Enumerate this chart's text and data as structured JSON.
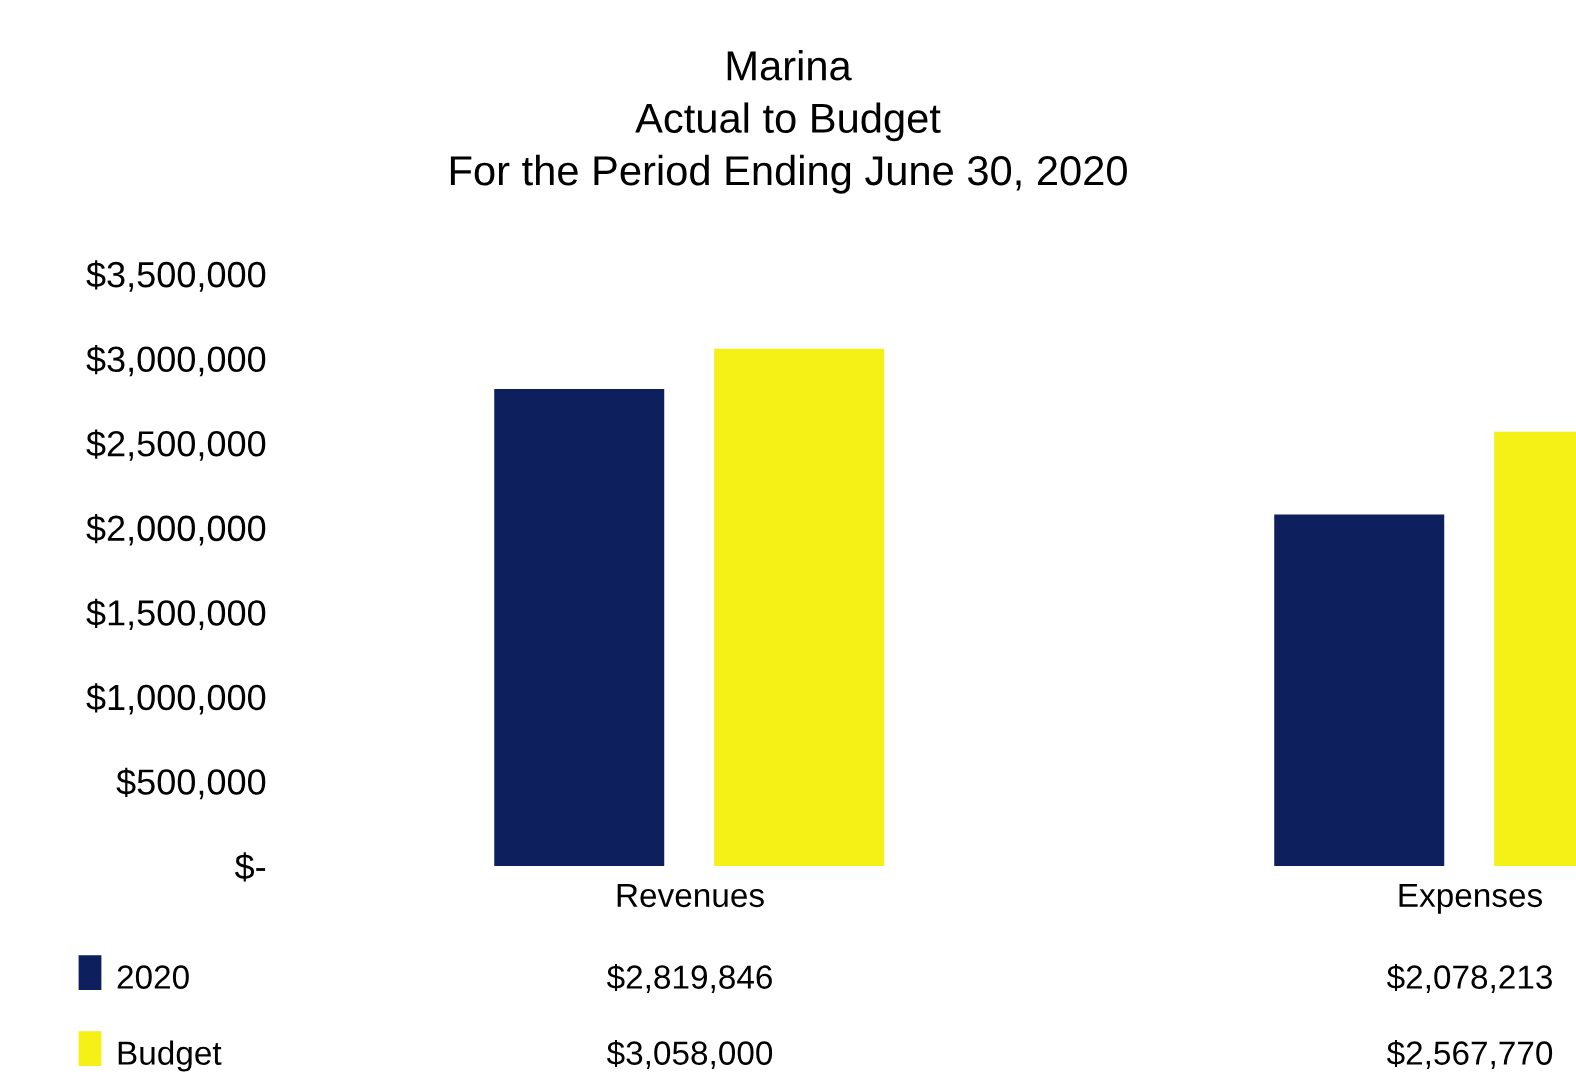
{
  "chart_data": {
    "type": "bar",
    "title": "Marina\nActual to Budget\nFor the Period Ending June 30, 2020",
    "categories": [
      "Revenues",
      "Expenses"
    ],
    "series": [
      {
        "name": "2020",
        "color": "#0d1f5c",
        "values": [
          2819846,
          2078213
        ],
        "value_labels": [
          "$2,819,846",
          "$2,078,213"
        ]
      },
      {
        "name": "Budget",
        "color": "#f5f016",
        "values": [
          3058000,
          2567770
        ],
        "value_labels": [
          "$3,058,000",
          "$2,567,770"
        ]
      }
    ],
    "ylim": [
      0,
      3500000
    ],
    "yticks": [
      {
        "value": 0,
        "label": "$-"
      },
      {
        "value": 500000,
        "label": "$500,000"
      },
      {
        "value": 1000000,
        "label": "$1,000,000"
      },
      {
        "value": 1500000,
        "label": "$1,500,000"
      },
      {
        "value": 2000000,
        "label": "$2,000,000"
      },
      {
        "value": 2500000,
        "label": "$2,500,000"
      },
      {
        "value": 3000000,
        "label": "$3,000,000"
      },
      {
        "value": 3500000,
        "label": "$3,500,000"
      }
    ],
    "grid": false,
    "legend": "bottom left"
  }
}
